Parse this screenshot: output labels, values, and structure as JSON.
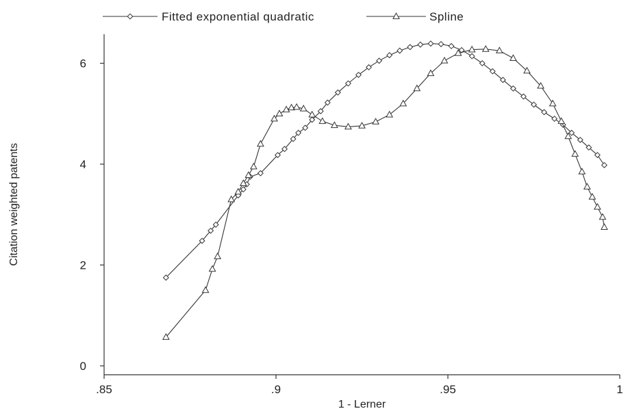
{
  "chart_data": {
    "type": "line",
    "title": "",
    "xlabel": "1 - Lerner",
    "ylabel": "Citation weighted patents",
    "xlim": [
      0.85,
      1.0
    ],
    "ylim": [
      0,
      6.6
    ],
    "x_ticks": [
      0.85,
      0.9,
      0.95,
      1.0
    ],
    "x_tick_labels": [
      ".85",
      ".9",
      ".95",
      "1"
    ],
    "y_ticks": [
      0,
      2,
      4,
      6
    ],
    "y_tick_labels": [
      "0",
      "2",
      "4",
      "6"
    ],
    "grid": false,
    "legend_position": "top",
    "series": [
      {
        "name": "Fitted exponential quadratic",
        "marker": "diamond",
        "x": [
          0.868,
          0.8785,
          0.881,
          0.8825,
          0.889,
          0.8905,
          0.8915,
          0.8925,
          0.8955,
          0.9005,
          0.9025,
          0.905,
          0.9065,
          0.9085,
          0.9105,
          0.913,
          0.915,
          0.918,
          0.921,
          0.924,
          0.927,
          0.93,
          0.933,
          0.936,
          0.939,
          0.942,
          0.945,
          0.948,
          0.951,
          0.954,
          0.957,
          0.96,
          0.963,
          0.966,
          0.969,
          0.972,
          0.975,
          0.978,
          0.981,
          0.9835,
          0.986,
          0.9885,
          0.991,
          0.9935,
          0.9955
        ],
        "y": [
          1.75,
          2.48,
          2.68,
          2.8,
          3.38,
          3.5,
          3.6,
          3.75,
          3.82,
          4.18,
          4.3,
          4.5,
          4.62,
          4.72,
          4.88,
          5.05,
          5.22,
          5.42,
          5.6,
          5.77,
          5.92,
          6.05,
          6.16,
          6.25,
          6.32,
          6.37,
          6.39,
          6.38,
          6.34,
          6.26,
          6.14,
          6.0,
          5.84,
          5.67,
          5.5,
          5.34,
          5.18,
          5.03,
          4.9,
          4.78,
          4.62,
          4.48,
          4.33,
          4.18,
          3.98
        ]
      },
      {
        "name": "Spline",
        "marker": "triangle",
        "x": [
          0.868,
          0.8795,
          0.8815,
          0.883,
          0.887,
          0.889,
          0.8905,
          0.892,
          0.8935,
          0.8955,
          0.8995,
          0.901,
          0.903,
          0.9045,
          0.906,
          0.908,
          0.9105,
          0.9135,
          0.917,
          0.921,
          0.925,
          0.929,
          0.933,
          0.937,
          0.941,
          0.945,
          0.949,
          0.953,
          0.957,
          0.961,
          0.965,
          0.969,
          0.973,
          0.977,
          0.9805,
          0.983,
          0.985,
          0.987,
          0.989,
          0.9905,
          0.992,
          0.9935,
          0.995,
          0.9955
        ],
        "y": [
          0.57,
          1.5,
          1.92,
          2.17,
          3.3,
          3.45,
          3.62,
          3.78,
          3.95,
          4.4,
          4.9,
          5.0,
          5.08,
          5.12,
          5.13,
          5.1,
          4.98,
          4.85,
          4.77,
          4.74,
          4.76,
          4.84,
          4.98,
          5.2,
          5.5,
          5.8,
          6.05,
          6.2,
          6.27,
          6.28,
          6.25,
          6.1,
          5.85,
          5.55,
          5.2,
          4.85,
          4.55,
          4.2,
          3.85,
          3.55,
          3.35,
          3.15,
          2.95,
          2.75
        ]
      }
    ]
  }
}
